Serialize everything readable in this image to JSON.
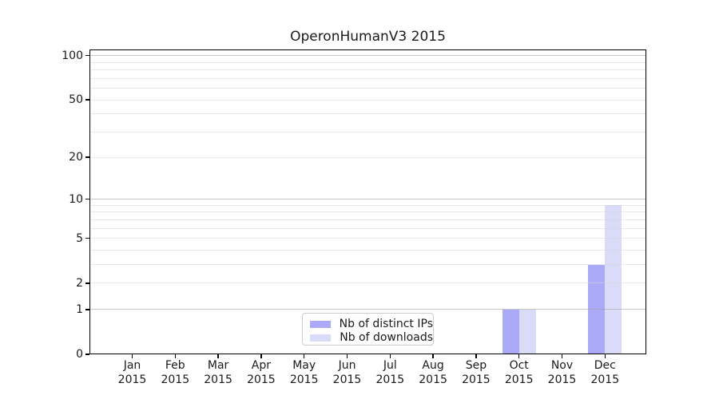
{
  "chart_data": {
    "type": "bar",
    "title": "OperonHumanV3 2015",
    "categories": [
      "Jan",
      "Feb",
      "Mar",
      "Apr",
      "May",
      "Jun",
      "Jul",
      "Aug",
      "Sep",
      "Oct",
      "Nov",
      "Dec"
    ],
    "x_tick_year": "2015",
    "series": [
      {
        "name": "Nb of distinct IPs",
        "color": "#aaaaf8",
        "values": [
          0,
          0,
          0,
          0,
          0,
          0,
          0,
          0,
          0,
          1,
          0,
          3
        ]
      },
      {
        "name": "Nb of downloads",
        "color": "#dadaf9",
        "values": [
          0,
          0,
          0,
          0,
          0,
          0,
          0,
          0,
          0,
          1,
          0,
          9
        ]
      }
    ],
    "yscale": "log1p",
    "yticks": [
      0,
      1,
      2,
      5,
      10,
      20,
      50,
      100
    ],
    "ylim": [
      0,
      110
    ],
    "grid": "horizontal major and minor",
    "legend_position": "lower center",
    "xlabel": "",
    "ylabel": ""
  }
}
